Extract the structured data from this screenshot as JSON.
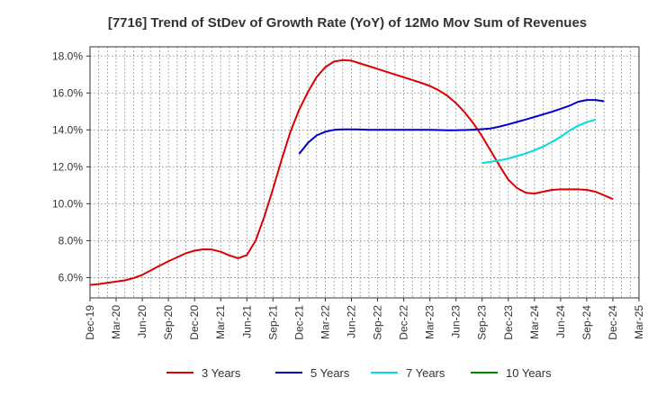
{
  "colors": {
    "3y": "#dd0000",
    "5y": "#0000cc",
    "7y": "#00dddd",
    "10y": "#008800",
    "grid": "#999999",
    "axis": "#333333"
  },
  "chart_data": {
    "type": "line",
    "title": "[7716]  Trend of StDev of Growth Rate (YoY) of 12Mo Mov Sum of Revenues",
    "xlabel": "",
    "ylabel": "",
    "ylim": [
      4.9,
      18.5
    ],
    "yticks": [
      6.0,
      8.0,
      10.0,
      12.0,
      14.0,
      16.0,
      18.0
    ],
    "ytick_labels": [
      "6.0%",
      "8.0%",
      "10.0%",
      "12.0%",
      "14.0%",
      "16.0%",
      "18.0%"
    ],
    "x_tick_labels": [
      "Dec-19",
      "Mar-20",
      "Jun-20",
      "Sep-20",
      "Dec-20",
      "Mar-21",
      "Jun-21",
      "Sep-21",
      "Dec-21",
      "Mar-22",
      "Jun-22",
      "Sep-22",
      "Dec-22",
      "Mar-23",
      "Jun-23",
      "Sep-23",
      "Dec-23",
      "Mar-24",
      "Jun-24",
      "Sep-24",
      "Dec-24",
      "Mar-25"
    ],
    "x_range_months": [
      0,
      63
    ],
    "grid": true,
    "legend_position": "bottom",
    "series": [
      {
        "name": "3 Years",
        "color_key": "3y",
        "points": [
          [
            0,
            5.6
          ],
          [
            1,
            5.65
          ],
          [
            2,
            5.72
          ],
          [
            3,
            5.78
          ],
          [
            4,
            5.85
          ],
          [
            5,
            5.97
          ],
          [
            6,
            6.15
          ],
          [
            7,
            6.4
          ],
          [
            8,
            6.65
          ],
          [
            9,
            6.88
          ],
          [
            10,
            7.1
          ],
          [
            11,
            7.32
          ],
          [
            12,
            7.46
          ],
          [
            13,
            7.53
          ],
          [
            14,
            7.52
          ],
          [
            15,
            7.4
          ],
          [
            16,
            7.2
          ],
          [
            17,
            7.05
          ],
          [
            18,
            7.22
          ],
          [
            19,
            8.0
          ],
          [
            20,
            9.3
          ],
          [
            21,
            10.8
          ],
          [
            22,
            12.4
          ],
          [
            23,
            13.9
          ],
          [
            24,
            15.1
          ],
          [
            25,
            16.05
          ],
          [
            26,
            16.85
          ],
          [
            27,
            17.4
          ],
          [
            28,
            17.7
          ],
          [
            29,
            17.78
          ],
          [
            30,
            17.75
          ],
          [
            31,
            17.6
          ],
          [
            32,
            17.45
          ],
          [
            33,
            17.3
          ],
          [
            34,
            17.15
          ],
          [
            35,
            17.0
          ],
          [
            36,
            16.85
          ],
          [
            37,
            16.7
          ],
          [
            38,
            16.55
          ],
          [
            39,
            16.38
          ],
          [
            40,
            16.15
          ],
          [
            41,
            15.85
          ],
          [
            42,
            15.45
          ],
          [
            43,
            14.95
          ],
          [
            44,
            14.35
          ],
          [
            45,
            13.65
          ],
          [
            46,
            12.85
          ],
          [
            47,
            12.05
          ],
          [
            48,
            11.3
          ],
          [
            49,
            10.85
          ],
          [
            50,
            10.6
          ],
          [
            51,
            10.55
          ],
          [
            52,
            10.65
          ],
          [
            53,
            10.75
          ],
          [
            54,
            10.78
          ],
          [
            55,
            10.78
          ],
          [
            56,
            10.78
          ],
          [
            57,
            10.75
          ],
          [
            58,
            10.65
          ],
          [
            59,
            10.45
          ],
          [
            60,
            10.25
          ]
        ]
      },
      {
        "name": "5 Years",
        "color_key": "5y",
        "points": [
          [
            24,
            12.7
          ],
          [
            25,
            13.3
          ],
          [
            26,
            13.7
          ],
          [
            27,
            13.9
          ],
          [
            28,
            14.0
          ],
          [
            29,
            14.03
          ],
          [
            30,
            14.03
          ],
          [
            31,
            14.02
          ],
          [
            32,
            14.0
          ],
          [
            33,
            14.0
          ],
          [
            34,
            14.0
          ],
          [
            35,
            14.0
          ],
          [
            36,
            14.0
          ],
          [
            37,
            14.0
          ],
          [
            38,
            14.0
          ],
          [
            39,
            14.0
          ],
          [
            40,
            13.99
          ],
          [
            41,
            13.98
          ],
          [
            42,
            13.98
          ],
          [
            43,
            13.99
          ],
          [
            44,
            14.01
          ],
          [
            45,
            14.04
          ],
          [
            46,
            14.08
          ],
          [
            47,
            14.18
          ],
          [
            48,
            14.3
          ],
          [
            49,
            14.43
          ],
          [
            50,
            14.56
          ],
          [
            51,
            14.7
          ],
          [
            52,
            14.84
          ],
          [
            53,
            14.98
          ],
          [
            54,
            15.14
          ],
          [
            55,
            15.3
          ],
          [
            56,
            15.52
          ],
          [
            57,
            15.62
          ],
          [
            58,
            15.62
          ],
          [
            59,
            15.55
          ]
        ]
      },
      {
        "name": "7 Years",
        "color_key": "7y",
        "points": [
          [
            45,
            12.2
          ],
          [
            46,
            12.27
          ],
          [
            47,
            12.35
          ],
          [
            48,
            12.45
          ],
          [
            49,
            12.58
          ],
          [
            50,
            12.72
          ],
          [
            51,
            12.9
          ],
          [
            52,
            13.1
          ],
          [
            53,
            13.35
          ],
          [
            54,
            13.62
          ],
          [
            55,
            13.95
          ],
          [
            56,
            14.22
          ],
          [
            57,
            14.42
          ],
          [
            58,
            14.55
          ]
        ]
      },
      {
        "name": "10 Years",
        "color_key": "10y",
        "points": []
      }
    ]
  }
}
